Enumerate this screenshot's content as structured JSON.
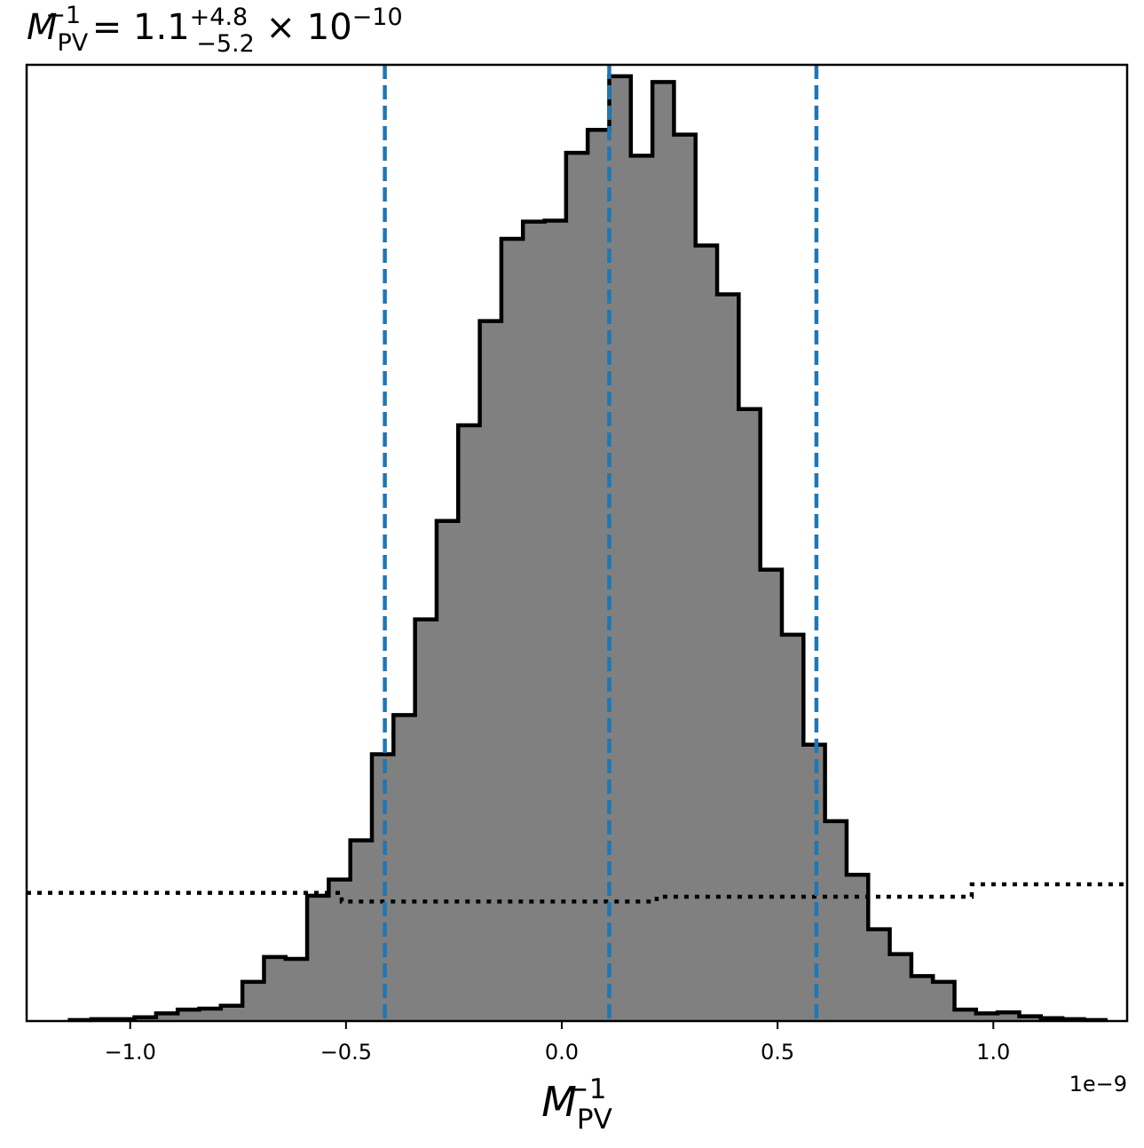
{
  "chart_data": {
    "type": "histogram",
    "title": {
      "symbol": "M",
      "sub": "PV",
      "sup": "−1",
      "equals": " = ",
      "value": "1.1",
      "plus": "+4.8",
      "minus": "−5.2",
      "times": " × 10",
      "exponent": "−10"
    },
    "xlabel": {
      "symbol": "M",
      "sub": "PV",
      "sup": "−1"
    },
    "x_offset_label": "1e−9",
    "xlim": [
      -1.24,
      1.31
    ],
    "ylim": [
      0,
      1000
    ],
    "x_ticks": [
      -1.0,
      -0.5,
      0.0,
      0.5,
      1.0
    ],
    "x_tick_labels": [
      "−1.0",
      "−0.5",
      "0.0",
      "0.5",
      "1.0"
    ],
    "y_ticks_visible": false,
    "grid": false,
    "histogram": {
      "bin_edges": [
        -1.14,
        -1.09,
        -1.04,
        -0.99,
        -0.94,
        -0.89,
        -0.84,
        -0.79,
        -0.74,
        -0.69,
        -0.64,
        -0.59,
        -0.54,
        -0.49,
        -0.44,
        -0.39,
        -0.34,
        -0.29,
        -0.24,
        -0.19,
        -0.14,
        -0.09,
        -0.04,
        0.01,
        0.06,
        0.11,
        0.16,
        0.21,
        0.26,
        0.31,
        0.36,
        0.41,
        0.46,
        0.51,
        0.56,
        0.61,
        0.66,
        0.71,
        0.76,
        0.81,
        0.86,
        0.91,
        0.96,
        1.01,
        1.06,
        1.11,
        1.16,
        1.21,
        1.26
      ],
      "counts": [
        1,
        2,
        2,
        4,
        8,
        12,
        13,
        16,
        41,
        67,
        65,
        131,
        148,
        189,
        279,
        320,
        420,
        523,
        623,
        732,
        818,
        836,
        837,
        908,
        932,
        988,
        905,
        982,
        927,
        811,
        760,
        640,
        472,
        404,
        289,
        209,
        153,
        96,
        70,
        47,
        41,
        12,
        8,
        9,
        5,
        3,
        2,
        1
      ],
      "fill_color": "#808080",
      "edge_color": "#000000"
    },
    "vertical_lines": {
      "style": "dashed",
      "color": "#1f77b4",
      "values": [
        -0.41,
        0.11,
        0.59
      ]
    },
    "prior_line": {
      "style": "dotted",
      "color": "#000000",
      "segments": [
        {
          "x0": -1.24,
          "x1": -0.51,
          "y": 134
        },
        {
          "x0": -0.51,
          "x1": 0.22,
          "y": 125
        },
        {
          "x0": 0.22,
          "x1": 0.95,
          "y": 130
        },
        {
          "x0": 0.95,
          "x1": 1.31,
          "y": 143
        }
      ]
    }
  }
}
